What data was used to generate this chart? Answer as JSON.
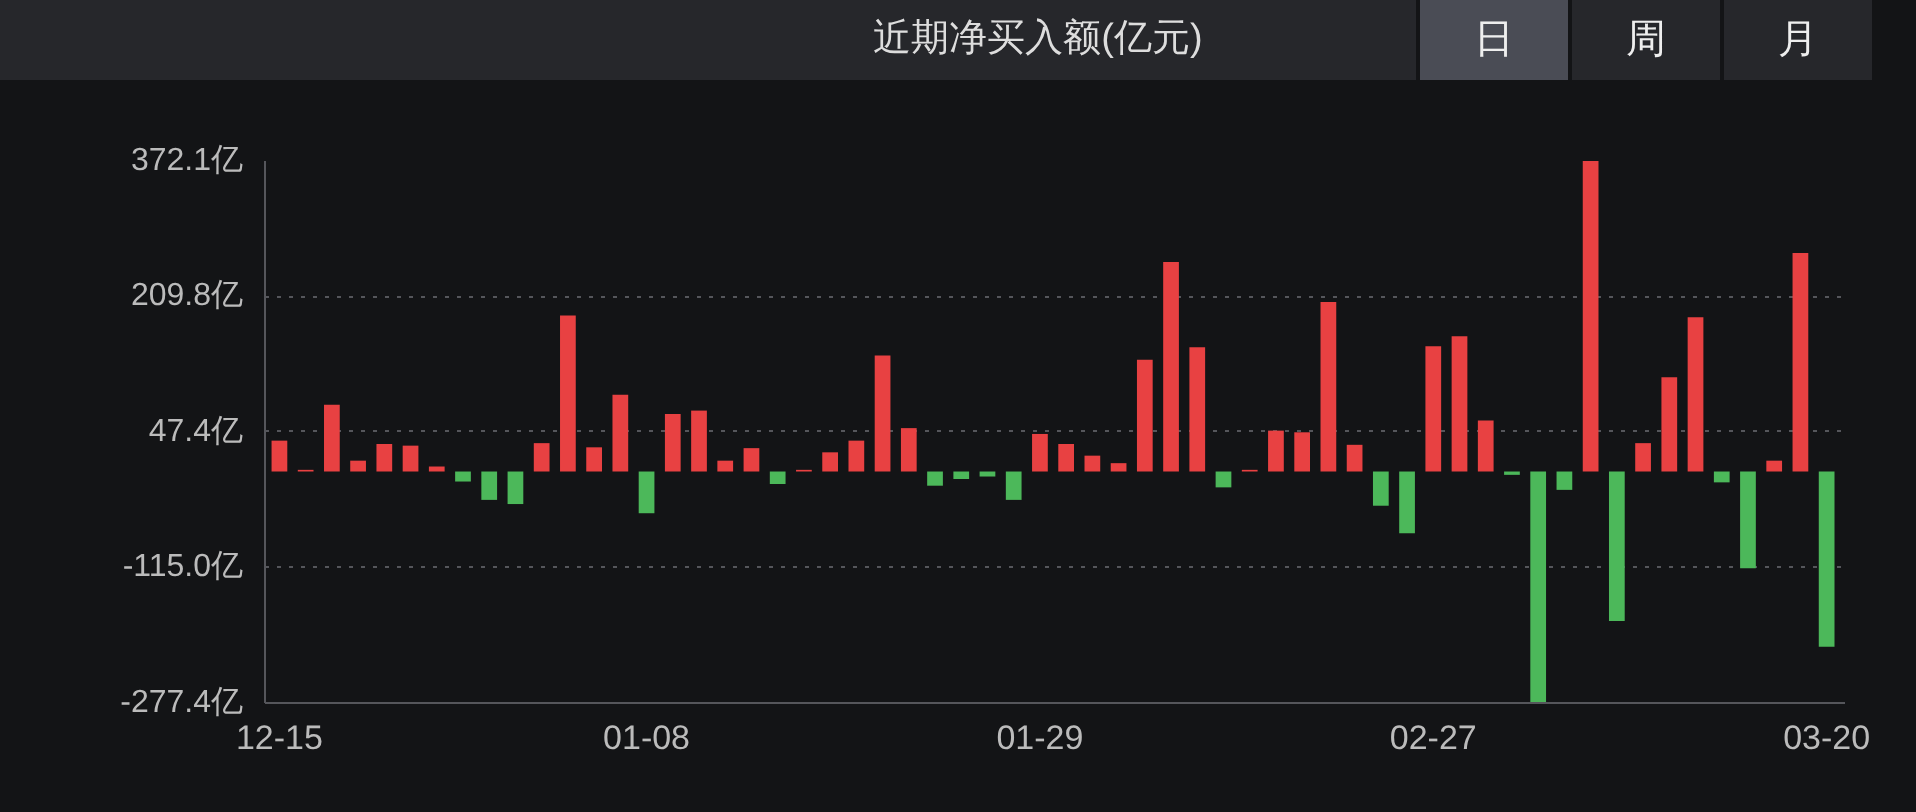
{
  "chart_data": {
    "type": "bar",
    "title": "近期净买入额(亿元)",
    "annotations": [
      "日",
      "周",
      "月"
    ],
    "categories": [
      "12-15",
      null,
      null,
      null,
      null,
      null,
      null,
      null,
      null,
      null,
      null,
      null,
      null,
      null,
      "01-08",
      null,
      null,
      null,
      null,
      null,
      null,
      null,
      null,
      null,
      null,
      null,
      null,
      null,
      null,
      "01-29",
      null,
      null,
      null,
      null,
      null,
      null,
      null,
      null,
      null,
      null,
      null,
      null,
      null,
      null,
      "02-27",
      null,
      null,
      null,
      null,
      null,
      null,
      null,
      null,
      null,
      null,
      null,
      null,
      null,
      null,
      "03-20"
    ],
    "values": [
      37,
      2,
      80,
      13,
      33,
      31,
      6,
      -12,
      -34,
      -39,
      34,
      187,
      29,
      92,
      -50,
      69,
      73,
      13,
      28,
      -15,
      2,
      23,
      37,
      139,
      52,
      -17,
      -9,
      -6,
      -34,
      45,
      33,
      19,
      10,
      134,
      251,
      149,
      -19,
      2,
      49,
      47,
      203,
      32,
      -41,
      -74,
      150,
      162,
      61,
      -4,
      -277,
      -22,
      372,
      -179,
      34,
      113,
      185,
      -13,
      -116,
      13,
      262,
      -210
    ],
    "colors": [
      "#e84142",
      "#e84142",
      "#e84142",
      "#e84142",
      "#e84142",
      "#e84142",
      "#e84142",
      "#4cb85a",
      "#4cb85a",
      "#4cb85a",
      "#e84142",
      "#e84142",
      "#e84142",
      "#e84142",
      "#4cb85a",
      "#e84142",
      "#e84142",
      "#e84142",
      "#e84142",
      "#4cb85a",
      "#e84142",
      "#e84142",
      "#e84142",
      "#e84142",
      "#e84142",
      "#4cb85a",
      "#4cb85a",
      "#4cb85a",
      "#4cb85a",
      "#e84142",
      "#e84142",
      "#e84142",
      "#e84142",
      "#e84142",
      "#e84142",
      "#e84142",
      "#4cb85a",
      "#e84142",
      "#e84142",
      "#e84142",
      "#e84142",
      "#e84142",
      "#4cb85a",
      "#4cb85a",
      "#e84142",
      "#e84142",
      "#e84142",
      "#4cb85a",
      "#4cb85a",
      "#4cb85a",
      "#e84142",
      "#4cb85a",
      "#e84142",
      "#e84142",
      "#e84142",
      "#4cb85a",
      "#4cb85a",
      "#e84142",
      "#e84142",
      "#4cb85a"
    ],
    "ylim": [
      -277.4,
      372.1
    ],
    "yticks": [
      {
        "value": 372.1,
        "label": "372.1亿"
      },
      {
        "value": 209.8,
        "label": "209.8亿"
      },
      {
        "value": 47.4,
        "label": "47.4亿"
      },
      {
        "value": -115.0,
        "label": "-115.0亿"
      },
      {
        "value": -277.4,
        "label": "-277.4亿"
      }
    ],
    "grid": "y"
  }
}
